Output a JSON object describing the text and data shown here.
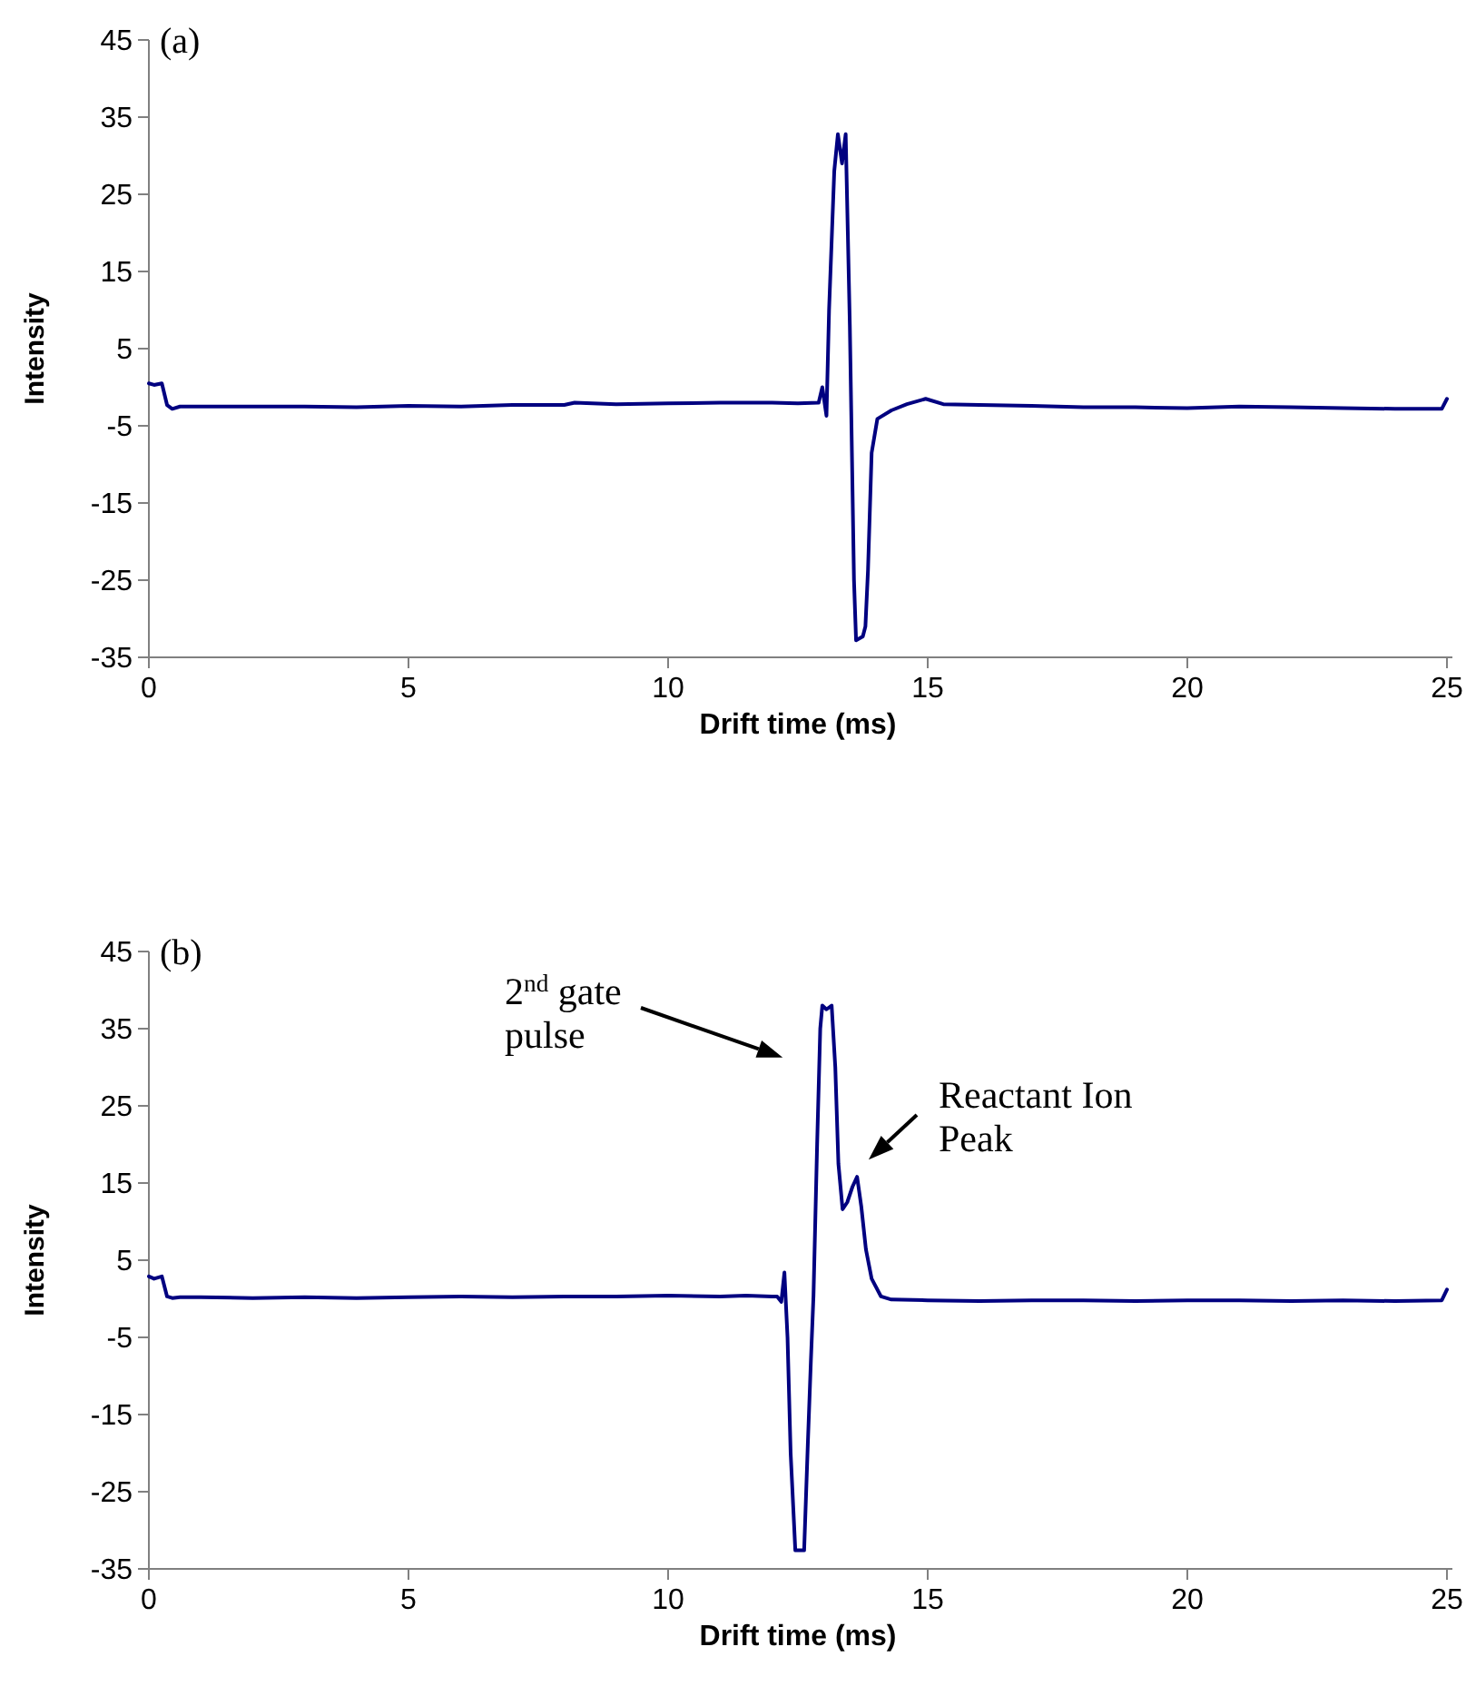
{
  "chart_data": [
    {
      "type": "line",
      "title": "(a)",
      "xlabel": "Drift time (ms)",
      "ylabel": "Intensity",
      "xlim": [
        0,
        25
      ],
      "xticks": [
        0,
        5,
        10,
        15,
        20,
        25
      ],
      "ylim": [
        -35,
        45
      ],
      "yticks": [
        -35,
        -25,
        -15,
        -5,
        5,
        15,
        25,
        35,
        45
      ],
      "line_style": "solid",
      "series": [
        {
          "color": "#000080",
          "x": [
            0,
            0.1,
            0.25,
            0.35,
            0.45,
            0.6,
            1,
            1.5,
            2,
            2.5,
            3,
            4,
            5,
            6,
            7,
            8,
            8.2,
            9,
            10,
            11,
            12,
            12.5,
            12.9,
            12.97,
            13.05,
            13.1,
            13.2,
            13.27,
            13.35,
            13.42,
            13.5,
            13.58,
            13.62,
            13.75,
            13.8,
            13.85,
            13.92,
            14.03,
            14.3,
            14.6,
            14.96,
            15.3,
            16,
            17,
            18,
            19,
            20,
            21,
            22,
            23,
            24,
            24.9,
            25
          ],
          "values": [
            0.5,
            0.3,
            0.5,
            -2.3,
            -2.8,
            -2.5,
            -2.5,
            -2.5,
            -2.5,
            -2.5,
            -2.5,
            -2.6,
            -2.4,
            -2.5,
            -2.3,
            -2.3,
            -2,
            -2.2,
            -2.1,
            -2,
            -2,
            -2.1,
            -2,
            0,
            -3.7,
            10,
            28,
            32.8,
            29,
            32.8,
            8,
            -25,
            -32.8,
            -32.3,
            -31,
            -23.7,
            -8.5,
            -4.1,
            -3,
            -2.2,
            -1.5,
            -2.2,
            -2.3,
            -2.4,
            -2.6,
            -2.6,
            -2.7,
            -2.5,
            -2.6,
            -2.7,
            -2.8,
            -2.8,
            -1.5
          ]
        }
      ]
    },
    {
      "type": "line",
      "title": "(b)",
      "xlabel": "Drift time (ms)",
      "ylabel": "Intensity",
      "xlim": [
        0,
        25
      ],
      "xticks": [
        0,
        5,
        10,
        15,
        20,
        25
      ],
      "ylim": [
        -35,
        45
      ],
      "yticks": [
        -35,
        -25,
        -15,
        -5,
        5,
        15,
        25,
        35,
        45
      ],
      "line_style": "solid",
      "annotations": [
        "2$^{nd}$ gate\npulse",
        "Reactant Ion\nPeak"
      ],
      "series": [
        {
          "color": "#000080",
          "x": [
            0,
            0.1,
            0.25,
            0.35,
            0.45,
            0.6,
            1,
            2,
            3,
            4,
            5,
            6,
            7,
            8,
            9,
            10,
            11,
            11.5,
            12,
            12.1,
            12.18,
            12.24,
            12.3,
            12.36,
            12.45,
            12.55,
            12.62,
            12.69,
            12.75,
            12.8,
            12.87,
            12.93,
            12.97,
            13.05,
            13.15,
            13.22,
            13.28,
            13.36,
            13.45,
            13.55,
            13.64,
            13.72,
            13.81,
            13.92,
            14.1,
            14.3,
            15,
            16,
            17,
            18,
            19,
            20,
            21,
            22,
            23,
            24,
            24.9,
            25
          ],
          "values": [
            2.9,
            2.6,
            2.9,
            0.3,
            0.1,
            0.2,
            0.2,
            0.1,
            0.2,
            0.1,
            0.2,
            0.3,
            0.2,
            0.3,
            0.3,
            0.4,
            0.3,
            0.4,
            0.3,
            0.3,
            -0.4,
            3.4,
            -5,
            -20,
            -32.6,
            -32.6,
            -32.6,
            -19,
            -8,
            0.4,
            20,
            35,
            38,
            37.5,
            38,
            30,
            17.5,
            11.6,
            12.5,
            14.5,
            15.8,
            12,
            6.4,
            2.6,
            0.3,
            -0.1,
            -0.2,
            -0.3,
            -0.2,
            -0.2,
            -0.3,
            -0.2,
            -0.2,
            -0.3,
            -0.2,
            -0.3,
            -0.2,
            1.2
          ]
        }
      ]
    }
  ]
}
